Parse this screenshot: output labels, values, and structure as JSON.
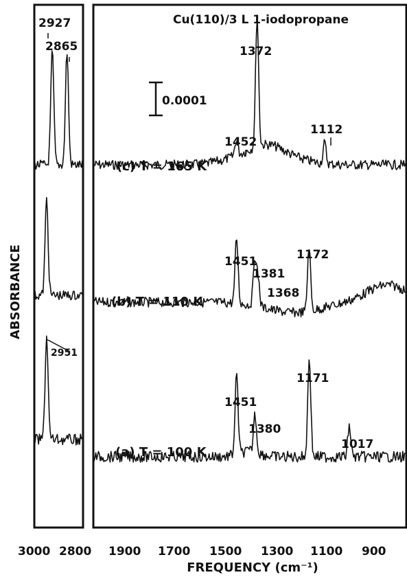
{
  "chart_data": {
    "type": "line",
    "title": "Cu(110)/3 L 1-iodopropane",
    "xlabel": "FREQUENCY (cm⁻¹)",
    "ylabel": "ABSORBANCE",
    "scale_bar_label": "0.0001",
    "panels": [
      {
        "name": "left",
        "xlim": [
          3000,
          2800
        ],
        "ticks": [
          "3000",
          "2800"
        ]
      },
      {
        "name": "right",
        "xlim": [
          2000,
          800
        ],
        "ticks": [
          "1900",
          "1700",
          "1500",
          "1300",
          "1100",
          "900"
        ]
      }
    ],
    "spectra": [
      {
        "label": "(c) T = 165 K",
        "left_peaks": [
          2927,
          2865
        ],
        "right_peaks": [
          {
            "x": 1452,
            "label": "1452"
          },
          {
            "x": 1372,
            "label": "1372"
          },
          {
            "x": 1112,
            "label": "1112"
          }
        ],
        "left_labels": [
          "2927",
          "2865"
        ]
      },
      {
        "label": "(b) T = 110 K",
        "left_peaks": [
          2951
        ],
        "right_peaks": [
          {
            "x": 1451,
            "label": "1451"
          },
          {
            "x": 1381,
            "label": "1381"
          },
          {
            "x": 1368,
            "label": "1368"
          },
          {
            "x": 1172,
            "label": "1172"
          }
        ],
        "left_labels": []
      },
      {
        "label": "(a) T = 100 K",
        "left_peaks": [
          2951
        ],
        "right_peaks": [
          {
            "x": 1451,
            "label": "1451"
          },
          {
            "x": 1380,
            "label": "1380"
          },
          {
            "x": 1171,
            "label": "1171"
          },
          {
            "x": 1017,
            "label": "1017"
          }
        ],
        "left_labels": [
          "2951"
        ]
      }
    ]
  }
}
